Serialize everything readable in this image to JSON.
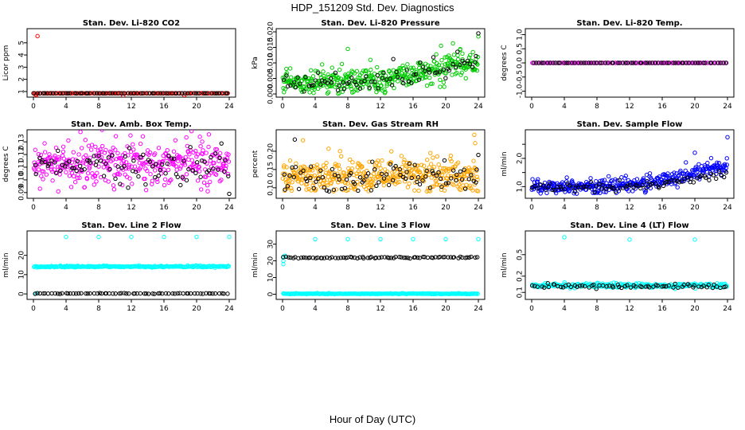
{
  "figure": {
    "title": "HDP_151209  Std. Dev. Diagnostics",
    "xlabel": "Hour of Day (UTC)"
  },
  "chart_data": [
    {
      "type": "scatter",
      "title": "Stan. Dev. Li-820 CO2",
      "ylabel": "Licor ppm",
      "xlim": [
        0,
        24
      ],
      "ylim": [
        0.8,
        5.9
      ],
      "xticks": [
        0,
        4,
        8,
        12,
        16,
        20,
        24
      ],
      "xtick_labels": [
        "0",
        "4",
        "8",
        "12",
        "16",
        "20",
        "24"
      ],
      "yticks": [
        1,
        2,
        3,
        4,
        5
      ],
      "ytick_labels": [
        "1",
        "2",
        "3",
        "4",
        "5"
      ],
      "log": false,
      "series": [
        {
          "color": "#ff0000",
          "base": [
            0.05,
            0.85
          ],
          "noise": 0.05,
          "outliers": [
            [
              0.5,
              5.55
            ],
            [
              0.3,
              0.6
            ],
            [
              0.3,
              0.75
            ],
            [
              11,
              0.6
            ],
            [
              18.5,
              0.7
            ]
          ],
          "min": 0.85,
          "count": 120
        },
        {
          "color": "#000000",
          "base": [
            0.05,
            0.85
          ],
          "noise": 0.04,
          "outliers": [],
          "min": 0.85,
          "count": 70
        }
      ]
    },
    {
      "type": "scatter",
      "title": "Stan. Dev. Li-820 Pressure",
      "ylabel": "kPa",
      "xlim": [
        0,
        24
      ],
      "ylim": [
        0,
        0.02
      ],
      "xticks": [
        0,
        4,
        8,
        12,
        16,
        20,
        24
      ],
      "xtick_labels": [
        "0",
        "4",
        "8",
        "12",
        "16",
        "20",
        "24"
      ],
      "yticks": [
        0,
        0.005,
        0.01,
        0.015,
        0.02
      ],
      "ytick_labels": [
        "0.000",
        "0.005",
        "0.010",
        "0.015",
        "0.020"
      ],
      "log": false,
      "series": [
        {
          "color": "#00cc00",
          "base": [
            0.004,
            0.004,
            0.004,
            0.004,
            0.006,
            0.009,
            0.01
          ],
          "noise": 0.0025,
          "outliers": [
            [
              8,
              0.0145
            ],
            [
              24,
              0.0185
            ]
          ],
          "min": 0,
          "count": 420
        },
        {
          "color": "#000000",
          "base": [
            0.004,
            0.004,
            0.004,
            0.004,
            0.006,
            0.008,
            0.01
          ],
          "noise": 0.002,
          "outliers": [
            [
              24,
              0.0195
            ]
          ],
          "min": 0,
          "count": 80
        }
      ]
    },
    {
      "type": "scatter",
      "title": "Stan. Dev. Li-820 Temp.",
      "ylabel": "degrees C",
      "xlim": [
        0,
        24
      ],
      "ylim": [
        -1.1,
        1.1
      ],
      "xticks": [
        0,
        4,
        8,
        12,
        16,
        20,
        24
      ],
      "xtick_labels": [
        "0",
        "4",
        "8",
        "12",
        "16",
        "20",
        "24"
      ],
      "yticks": [
        -1,
        -0.5,
        0,
        0.5,
        1
      ],
      "ytick_labels": [
        "-1.0",
        "-0.5",
        "0.0",
        "0.5",
        "1.0"
      ],
      "log": false,
      "series": [
        {
          "color": "#ff00ff",
          "base": [
            0,
            0
          ],
          "noise": 0,
          "outliers": [],
          "min": -1,
          "count": 140
        },
        {
          "color": "#000000",
          "base": [
            0,
            0
          ],
          "noise": 0,
          "outliers": [],
          "min": -1,
          "count": 70
        }
      ]
    },
    {
      "type": "scatter",
      "title": "Stan. Dev. Amb. Box Temp.",
      "ylabel": "degrees C",
      "xlim": [
        0,
        24
      ],
      "ylim": [
        0.088,
        0.137
      ],
      "xticks": [
        0,
        4,
        8,
        12,
        16,
        20,
        24
      ],
      "xtick_labels": [
        "0",
        "4",
        "8",
        "12",
        "16",
        "20",
        "24"
      ],
      "yticks": [
        0.09,
        0.1,
        0.11,
        0.12,
        0.13
      ],
      "ytick_labels": [
        "0.09",
        "0.10",
        "0.11",
        "0.12",
        "0.13"
      ],
      "log": false,
      "series": [
        {
          "color": "#ff00ff",
          "base": [
            0.113,
            0.113
          ],
          "noise": 0.011,
          "outliers": [],
          "min": 0.09,
          "count": 380
        },
        {
          "color": "#000000",
          "base": [
            0.113,
            0.113
          ],
          "noise": 0.01,
          "outliers": [
            [
              24,
              0.089
            ]
          ],
          "min": 0.089,
          "count": 90
        }
      ]
    },
    {
      "type": "scatter",
      "title": "Stan. Dev. Gas Stream RH",
      "ylabel": "percent",
      "xlim": [
        0,
        24
      ],
      "ylim": [
        0.08,
        0.25
      ],
      "xticks": [
        0,
        4,
        8,
        12,
        16,
        20,
        24
      ],
      "xtick_labels": [
        "0",
        "4",
        "8",
        "12",
        "16",
        "20",
        "24"
      ],
      "yticks": [
        0.1,
        0.15,
        0.2
      ],
      "ytick_labels": [
        "0.10",
        "0.15",
        "0.20"
      ],
      "log": false,
      "series": [
        {
          "color": "#ffa500",
          "base": [
            0.135,
            0.135
          ],
          "noise": 0.03,
          "outliers": [
            [
              23.5,
              0.245
            ],
            [
              2.5,
              0.23
            ]
          ],
          "min": 0.09,
          "count": 420
        },
        {
          "color": "#000000",
          "base": [
            0.13,
            0.13
          ],
          "noise": 0.025,
          "outliers": [
            [
              1.5,
              0.232
            ],
            [
              24,
              0.19
            ]
          ],
          "min": 0.09,
          "count": 90
        }
      ]
    },
    {
      "type": "scatter",
      "title": "Stan. Dev. Sample Flow",
      "ylabel": "ml/min",
      "xlim": [
        0,
        24
      ],
      "ylim": [
        0.7,
        2.9
      ],
      "xticks": [
        0,
        4,
        8,
        12,
        16,
        20,
        24
      ],
      "xtick_labels": [
        "0",
        "4",
        "8",
        "12",
        "16",
        "20",
        "24"
      ],
      "yticks": [
        1.0,
        1.5,
        2.0,
        2.5
      ],
      "ytick_labels": [
        "1.0",
        "",
        "2.0",
        ""
      ],
      "log": false,
      "series": [
        {
          "color": "#0000ff",
          "base": [
            1.0,
            1.0,
            1.0,
            1.05,
            1.2,
            1.5,
            1.8
          ],
          "noise": 0.15,
          "outliers": [
            [
              24,
              2.75
            ],
            [
              20,
              2.2
            ],
            [
              7.5,
              0.78
            ]
          ],
          "min": 0.75,
          "count": 380
        },
        {
          "color": "#000000",
          "base": [
            1.0,
            1.0,
            1.0,
            1.0,
            1.1,
            1.3,
            1.5
          ],
          "noise": 0.1,
          "outliers": [],
          "min": 0.8,
          "count": 80
        }
      ]
    },
    {
      "type": "scatter",
      "title": "Stan. Dev. Line 2 Flow",
      "ylabel": "ml/min",
      "xlim": [
        0,
        24
      ],
      "ylim": [
        -1.2,
        31
      ],
      "xticks": [
        0,
        4,
        8,
        12,
        16,
        20,
        24
      ],
      "xtick_labels": [
        "0",
        "4",
        "8",
        "12",
        "16",
        "20",
        "24"
      ],
      "yticks": [
        0,
        10,
        20
      ],
      "ytick_labels": [
        "0",
        "10",
        "20"
      ],
      "log": false,
      "series": [
        {
          "color": "#00ffff",
          "base": [
            14.2,
            14.2
          ],
          "noise": 0.25,
          "outliers": [
            [
              4,
              29.5
            ],
            [
              8,
              29.5
            ],
            [
              12,
              29.5
            ],
            [
              16,
              29.5
            ],
            [
              20,
              29.5
            ],
            [
              24,
              29.5
            ],
            [
              0.3,
              0.3
            ]
          ],
          "min": 0,
          "count": 260
        },
        {
          "color": "#000000",
          "base": [
            0.2,
            0.2
          ],
          "noise": 0.1,
          "outliers": [],
          "min": 0,
          "count": 70
        }
      ]
    },
    {
      "type": "scatter",
      "title": "Stan. Dev. Line 3 Flow",
      "ylabel": "ml/min",
      "xlim": [
        0,
        24
      ],
      "ylim": [
        -1.2,
        36
      ],
      "xticks": [
        0,
        4,
        8,
        12,
        16,
        20,
        24
      ],
      "xtick_labels": [
        "0",
        "4",
        "8",
        "12",
        "16",
        "20",
        "24"
      ],
      "yticks": [
        0,
        10,
        20,
        30
      ],
      "ytick_labels": [
        "0",
        "10",
        "20",
        "30"
      ],
      "log": false,
      "series": [
        {
          "color": "#00ffff",
          "base": [
            0.3,
            0.3
          ],
          "noise": 0.15,
          "outliers": [
            [
              4,
              33
            ],
            [
              8,
              33
            ],
            [
              12,
              33
            ],
            [
              16,
              33
            ],
            [
              20,
              33
            ],
            [
              24,
              33
            ],
            [
              0.1,
              22.5
            ],
            [
              0.1,
              20
            ],
            [
              0.1,
              18
            ],
            [
              0.3,
              23
            ]
          ],
          "min": 0,
          "count": 260
        },
        {
          "color": "#000000",
          "base": [
            21.8,
            22.2
          ],
          "noise": 0.3,
          "outliers": [],
          "min": 0,
          "count": 80
        }
      ]
    },
    {
      "type": "scatter",
      "title": "Stan. Dev. Line 4 (LT) Flow",
      "ylabel": "ml/min",
      "xlim": [
        0,
        24
      ],
      "ylim": [
        0.085,
        1.2
      ],
      "xticks": [
        0,
        4,
        8,
        12,
        16,
        20,
        24
      ],
      "xtick_labels": [
        "0",
        "4",
        "8",
        "12",
        "16",
        "20",
        "24"
      ],
      "yticks": [
        0.1,
        0.2,
        0.5
      ],
      "ytick_labels": [
        "0.1",
        "0.2",
        "0.5"
      ],
      "log": true,
      "series": [
        {
          "color": "#00ffff",
          "base": [
            0.135,
            0.135
          ],
          "noise": 0.008,
          "outliers": [
            [
              4,
              1.05
            ],
            [
              12,
              0.95
            ],
            [
              20,
              0.95
            ],
            [
              0.5,
              0.14
            ]
          ],
          "min": 0.11,
          "count": 260
        },
        {
          "color": "#000000",
          "base": [
            0.13,
            0.13
          ],
          "noise": 0.007,
          "outliers": [],
          "min": 0.11,
          "count": 70
        }
      ]
    }
  ]
}
